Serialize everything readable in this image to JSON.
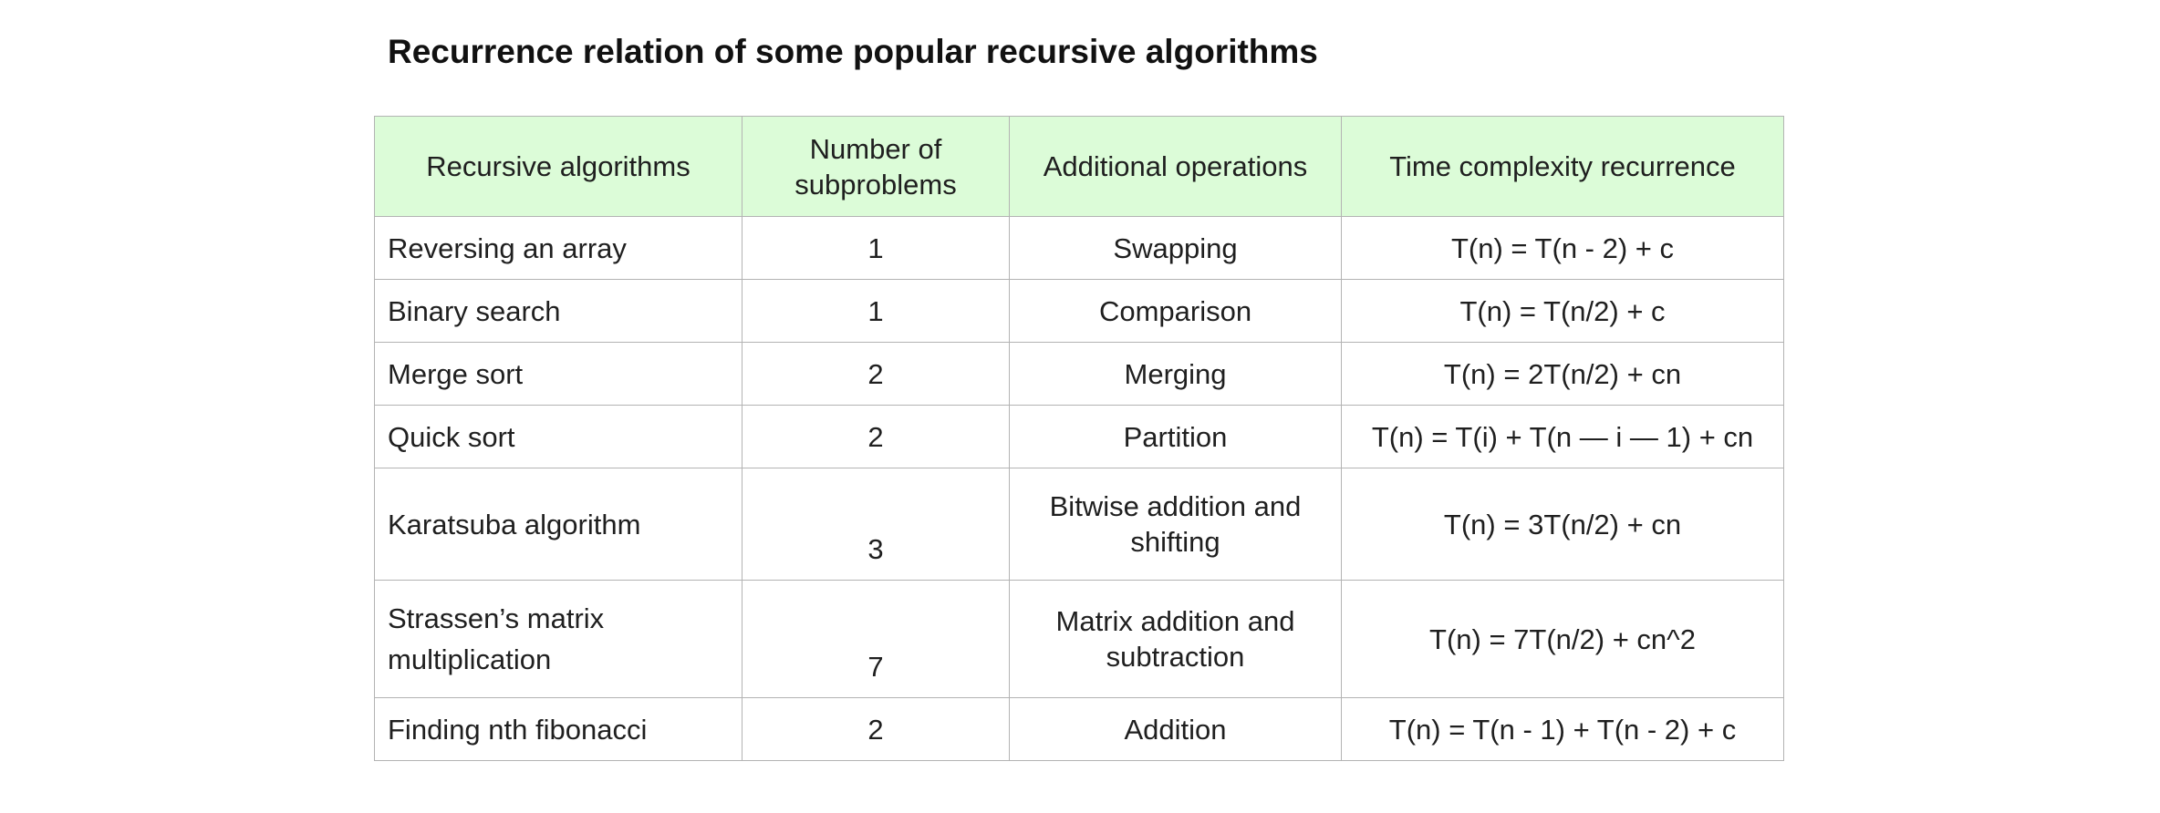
{
  "title": "Recurrence relation of some popular recursive algorithms",
  "table": {
    "headers": [
      "Recursive algorithms",
      "Number of subproblems",
      "Additional operations",
      "Time complexity recurrence"
    ],
    "rows": [
      {
        "algorithm": "Reversing an array",
        "subproblems": "1",
        "operations": "Swapping",
        "recurrence": "T(n) = T(n - 2) + c"
      },
      {
        "algorithm": "Binary search",
        "subproblems": "1",
        "operations": "Comparison",
        "recurrence": "T(n) = T(n/2) + c"
      },
      {
        "algorithm": "Merge sort",
        "subproblems": "2",
        "operations": "Merging",
        "recurrence": "T(n) = 2T(n/2) + cn"
      },
      {
        "algorithm": "Quick sort",
        "subproblems": "2",
        "operations": "Partition",
        "recurrence": "T(n) = T(i) + T(n — i — 1) + cn"
      },
      {
        "algorithm": "Karatsuba algorithm",
        "subproblems": "3",
        "operations": "Bitwise addition and shifting",
        "recurrence": "T(n) = 3T(n/2) + cn"
      },
      {
        "algorithm": "Strassen’s matrix multiplication",
        "subproblems": "7",
        "operations": "Matrix addition and subtraction",
        "recurrence": "T(n) = 7T(n/2) + cn^2"
      },
      {
        "algorithm": "Finding nth fibonacci",
        "subproblems": "2",
        "operations": "Addition",
        "recurrence": "T(n) = T(n - 1) + T(n - 2) + c"
      }
    ]
  }
}
